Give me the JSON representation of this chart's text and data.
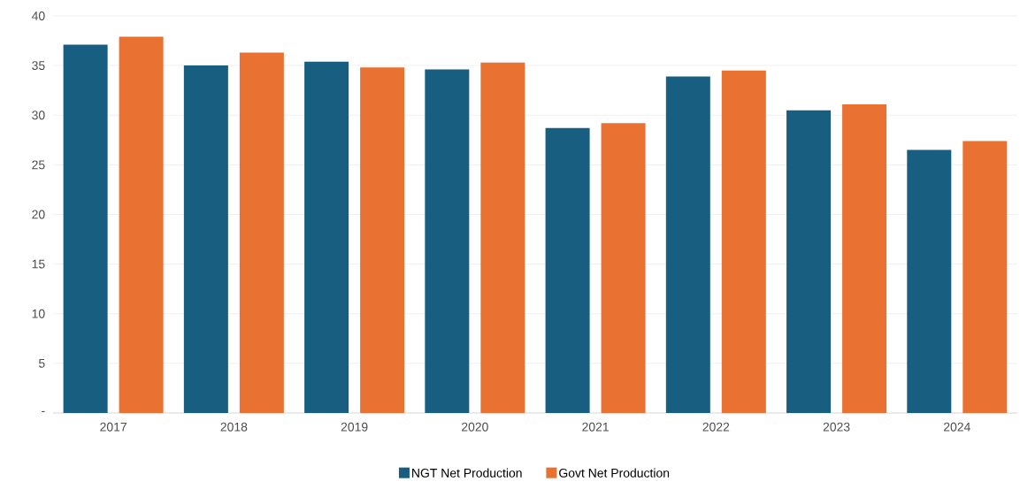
{
  "chart_data": {
    "type": "bar",
    "categories": [
      "2017",
      "2018",
      "2019",
      "2020",
      "2021",
      "2022",
      "2023",
      "2024"
    ],
    "series": [
      {
        "name": "NGT Net Production",
        "color": "#175e81",
        "values": [
          37.1,
          35.0,
          35.4,
          34.6,
          28.7,
          33.9,
          30.5,
          26.5
        ]
      },
      {
        "name": "Govt Net Production",
        "color": "#e97132",
        "values": [
          37.9,
          36.3,
          34.8,
          35.3,
          29.2,
          34.5,
          31.1,
          27.4
        ]
      }
    ],
    "ylim": [
      0,
      40
    ],
    "yticks": [
      {
        "value": 0,
        "label": "-"
      },
      5,
      10,
      15,
      20,
      25,
      30,
      35,
      40
    ],
    "grid": "y",
    "legend": "bottom"
  }
}
